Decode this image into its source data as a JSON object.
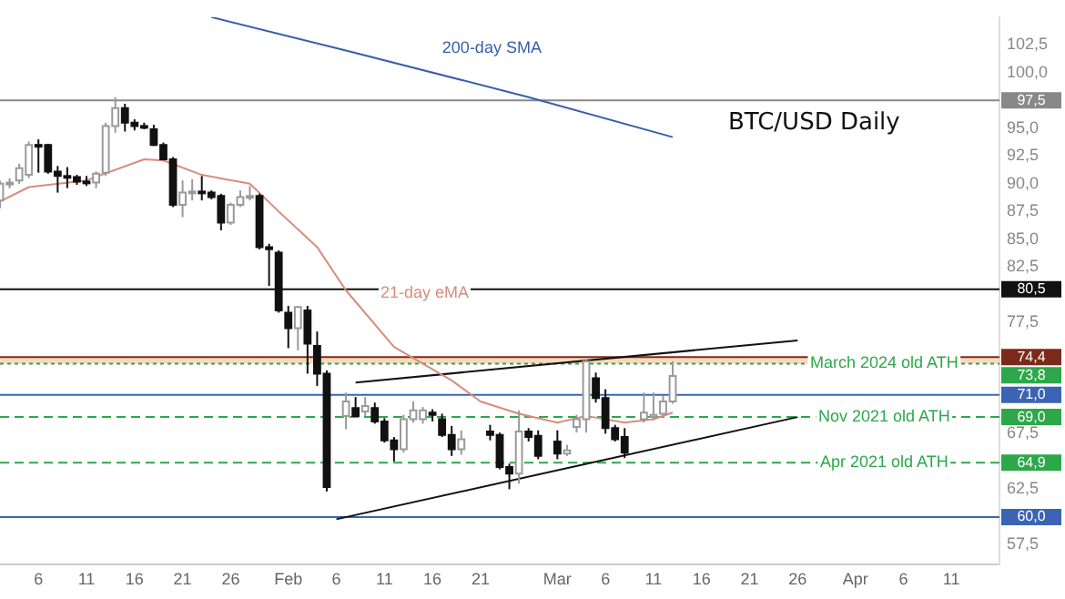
{
  "chart_data": {
    "type": "candlestick",
    "title": "BTC/USD Daily",
    "x": [
      "--01-02",
      "--01-03",
      "--01-04",
      "--01-05",
      "--01-06",
      "--01-07",
      "--01-08",
      "--01-09",
      "--01-10",
      "--01-11",
      "--01-12",
      "--01-13",
      "--01-14",
      "--01-15",
      "--01-16",
      "--01-17",
      "--01-18",
      "--01-19",
      "--01-20",
      "--01-21",
      "--01-22",
      "--01-23",
      "--01-24",
      "--01-25",
      "--01-26",
      "--01-27",
      "--01-28",
      "--01-29",
      "--01-30",
      "--01-31",
      "--02-01",
      "--02-02",
      "--02-03",
      "--02-04",
      "--02-05",
      "--02-07",
      "--02-08",
      "--02-09",
      "--02-10",
      "--02-11",
      "--02-12",
      "--02-13",
      "--02-14",
      "--02-15",
      "--02-16",
      "--02-17",
      "--02-18",
      "--02-19",
      "--02-22",
      "--02-23",
      "--02-24",
      "--02-25",
      "--02-26",
      "--02-27",
      "--03-01",
      "--03-02",
      "--03-03",
      "--03-04",
      "--03-05",
      "--03-06",
      "--03-07",
      "--03-08",
      "--03-10",
      "--03-11",
      "--03-12",
      "--03-13"
    ],
    "ohlc": [
      [
        88.5,
        90.3,
        87.8,
        90.0
      ],
      [
        90.0,
        90.5,
        89.6,
        90.1
      ],
      [
        90.3,
        91.8,
        90.0,
        91.4
      ],
      [
        90.8,
        93.8,
        90.5,
        93.5
      ],
      [
        93.5,
        94.0,
        91.0,
        93.4
      ],
      [
        93.5,
        93.6,
        90.9,
        91.1
      ],
      [
        91.1,
        91.6,
        89.2,
        90.7
      ],
      [
        90.7,
        91.5,
        89.6,
        90.6
      ],
      [
        90.6,
        90.8,
        89.9,
        90.2
      ],
      [
        90.2,
        90.7,
        89.8,
        90.1
      ],
      [
        90.1,
        91.1,
        89.6,
        90.9
      ],
      [
        91.0,
        95.5,
        90.7,
        95.2
      ],
      [
        95.2,
        97.8,
        94.6,
        96.8
      ],
      [
        96.8,
        97.2,
        94.7,
        95.5
      ],
      [
        95.5,
        95.8,
        94.8,
        95.2
      ],
      [
        95.2,
        95.5,
        94.9,
        95.1
      ],
      [
        94.9,
        95.3,
        93.4,
        93.5
      ],
      [
        93.5,
        93.7,
        92.1,
        92.2
      ],
      [
        92.2,
        92.4,
        87.9,
        88.1
      ],
      [
        88.1,
        90.3,
        87.0,
        89.2
      ],
      [
        89.2,
        90.4,
        88.5,
        89.3
      ],
      [
        89.3,
        90.7,
        88.5,
        89.2
      ],
      [
        89.2,
        89.4,
        88.6,
        88.8
      ],
      [
        88.9,
        89.1,
        85.8,
        86.5
      ],
      [
        86.5,
        88.3,
        86.3,
        88.1
      ],
      [
        88.1,
        89.4,
        87.9,
        88.8
      ],
      [
        88.8,
        89.8,
        88.5,
        88.9
      ],
      [
        88.9,
        89.1,
        84.1,
        84.3
      ],
      [
        84.3,
        84.6,
        80.8,
        84.1
      ],
      [
        83.8,
        84.0,
        78.4,
        78.6
      ],
      [
        78.4,
        79.0,
        75.2,
        77.0
      ],
      [
        77.0,
        79.0,
        75.0,
        78.9
      ],
      [
        78.6,
        79.0,
        72.9,
        75.6
      ],
      [
        75.4,
        76.7,
        71.8,
        72.9
      ],
      [
        72.9,
        73.2,
        62.3,
        62.7
      ],
      [
        69.1,
        71.2,
        67.9,
        70.4
      ],
      [
        69.8,
        70.8,
        69.1,
        69.1
      ],
      [
        69.5,
        70.8,
        69.1,
        70.0
      ],
      [
        69.8,
        70.3,
        68.4,
        68.6
      ],
      [
        68.6,
        68.9,
        66.7,
        66.9
      ],
      [
        66.9,
        67.2,
        65.0,
        66.1
      ],
      [
        66.1,
        69.2,
        65.8,
        68.8
      ],
      [
        68.8,
        70.4,
        68.5,
        69.6
      ],
      [
        68.8,
        69.9,
        68.4,
        69.6
      ],
      [
        69.4,
        69.7,
        68.6,
        69.2
      ],
      [
        68.8,
        69.3,
        67.2,
        67.4
      ],
      [
        67.4,
        68.2,
        65.5,
        66.1
      ],
      [
        66.1,
        67.8,
        65.6,
        67.0
      ],
      [
        67.7,
        68.3,
        66.9,
        67.4
      ],
      [
        67.4,
        67.6,
        64.3,
        64.5
      ],
      [
        64.5,
        64.8,
        62.5,
        63.9
      ],
      [
        63.9,
        69.6,
        63.0,
        67.7
      ],
      [
        67.7,
        68.0,
        66.8,
        67.2
      ],
      [
        67.3,
        67.8,
        65.2,
        65.5
      ],
      [
        66.8,
        67.8,
        65.2,
        65.7
      ],
      [
        65.7,
        66.5,
        65.5,
        66.0
      ],
      [
        68.1,
        69.2,
        67.6,
        68.8
      ],
      [
        68.8,
        74.2,
        67.6,
        74.0
      ],
      [
        72.5,
        73.0,
        70.3,
        70.7
      ],
      [
        70.7,
        71.5,
        67.5,
        68.0
      ],
      [
        68.0,
        68.3,
        66.8,
        67.0
      ],
      [
        67.2,
        68.0,
        65.3,
        65.8
      ],
      [
        68.8,
        71.2,
        68.5,
        69.4
      ],
      [
        69.0,
        71.2,
        68.7,
        69.2
      ],
      [
        69.3,
        70.9,
        68.9,
        70.4
      ],
      [
        70.4,
        74.0,
        70.2,
        72.7
      ]
    ],
    "series": [
      {
        "type": "line",
        "name": "200-day SMA",
        "color": "#3a5ea8",
        "x": [
          "--01-24",
          "--02-07",
          "--02-26",
          "--03-13"
        ],
        "values": [
          105.0,
          102.0,
          97.8,
          94.2
        ]
      },
      {
        "type": "line",
        "name": "21-day eMA",
        "color": "#d98c7c",
        "x": [
          "--01-02",
          "--01-05",
          "--01-11",
          "--01-17",
          "--01-19",
          "--01-23",
          "--01-28",
          "--01-31",
          "--02-04",
          "--02-07",
          "--02-12",
          "--02-18",
          "--02-21",
          "--02-25",
          "--03-01",
          "--03-04",
          "--03-08",
          "--03-11",
          "--03-13"
        ],
        "values": [
          88.4,
          89.7,
          90.3,
          92.2,
          92.1,
          90.8,
          90.0,
          87.5,
          84.3,
          80.4,
          75.3,
          72.3,
          70.4,
          69.3,
          68.5,
          69.1,
          68.5,
          68.8,
          69.4
        ]
      },
      {
        "type": "line",
        "color": "#111111",
        "x": [
          "--02-08",
          "--03-26"
        ],
        "values": [
          72.1,
          75.9
        ]
      },
      {
        "type": "line",
        "color": "#111111",
        "x": [
          "--02-06",
          "--03-26"
        ],
        "values": [
          59.8,
          69.0
        ]
      }
    ],
    "bands": [
      {
        "axis": "y",
        "from": 73.8,
        "to": 74.4,
        "color": "#f9d8bd"
      }
    ],
    "ref_lines": [
      {
        "axis": "y",
        "value": 97.5,
        "label": "97,5",
        "color": "#888888",
        "line_style": "solid"
      },
      {
        "axis": "y",
        "value": 80.5,
        "label": "80,5",
        "color": "#111111",
        "line_style": "solid"
      },
      {
        "axis": "y",
        "value": 74.4,
        "label": "74,4",
        "color": "#7b2a1a",
        "line_style": "solid"
      },
      {
        "axis": "y",
        "value": 73.8,
        "label": "73,8",
        "color": "#2ca84a",
        "line_style": "dotted"
      },
      {
        "axis": "y",
        "value": 71.0,
        "label": "71,0",
        "color": "#3c64b4",
        "line_style": "solid"
      },
      {
        "axis": "y",
        "value": 69.0,
        "label": "69,0",
        "color": "#2ca84a",
        "line_style": "dashed"
      },
      {
        "axis": "y",
        "value": 64.9,
        "label": "64,9",
        "color": "#2ca84a",
        "line_style": "dashed"
      },
      {
        "axis": "y",
        "value": 60.0,
        "label": "60,0",
        "color": "#3c64b4",
        "line_style": "solid"
      }
    ],
    "annotations": [
      {
        "text": "March 2024 old ATH",
        "x": "--04-04",
        "y": 73.8
      },
      {
        "text": "Nov 2021 old ATH",
        "x": "--04-04",
        "y": 69.0
      },
      {
        "text": "Apr 2021 old ATH",
        "x": "--04-04",
        "y": 64.9
      }
    ],
    "xlim": [
      "--01-02",
      "--04-16"
    ],
    "xticks": [
      {
        "value": "--01-06",
        "label": "6"
      },
      {
        "value": "--01-11",
        "label": "11"
      },
      {
        "value": "--01-16",
        "label": "16"
      },
      {
        "value": "--01-21",
        "label": "21"
      },
      {
        "value": "--01-26",
        "label": "26"
      },
      {
        "value": "--02-01",
        "label": "Feb"
      },
      {
        "value": "--02-06",
        "label": "6"
      },
      {
        "value": "--02-11",
        "label": "11"
      },
      {
        "value": "--02-16",
        "label": "16"
      },
      {
        "value": "--02-21",
        "label": "21"
      },
      {
        "value": "--03-01",
        "label": "Mar"
      },
      {
        "value": "--03-06",
        "label": "6"
      },
      {
        "value": "--03-11",
        "label": "11"
      },
      {
        "value": "--03-16",
        "label": "16"
      },
      {
        "value": "--03-21",
        "label": "21"
      },
      {
        "value": "--03-26",
        "label": "26"
      },
      {
        "value": "--04-01",
        "label": "Apr"
      },
      {
        "value": "--04-06",
        "label": "6"
      },
      {
        "value": "--04-11",
        "label": "11"
      }
    ],
    "ylim": [
      55.7,
      105
    ],
    "yticks": [
      {
        "value": 57.5,
        "label": "57,5"
      },
      {
        "value": 62.5,
        "label": "62,5"
      },
      {
        "value": 67.5,
        "label": "67,5"
      },
      {
        "value": 77.5,
        "label": "77,5"
      },
      {
        "value": 82.5,
        "label": "82,5"
      },
      {
        "value": 85,
        "label": "85,0"
      },
      {
        "value": 87.5,
        "label": "87,5"
      },
      {
        "value": 90,
        "label": "90,0"
      },
      {
        "value": 92.5,
        "label": "92,5"
      },
      {
        "value": 95,
        "label": "95,0"
      },
      {
        "value": 100,
        "label": "100,0"
      },
      {
        "value": 102.5,
        "label": "102,5"
      }
    ]
  }
}
